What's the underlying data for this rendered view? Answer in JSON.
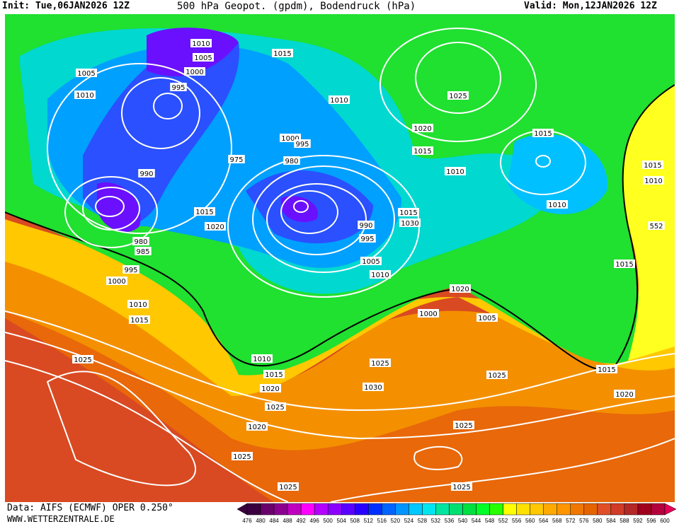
{
  "header": {
    "init": "Init: Tue,06JAN2026 12Z",
    "title": "500 hPa Geopot. (gpdm), Bodendruck (hPa)",
    "valid": "Valid: Mon,12JAN2026 12Z"
  },
  "footer": {
    "data_source": "Data: AIFS (ECMWF) OPER 0.250°",
    "website": "WWW.WETTERZENTRALE.DE"
  },
  "colorbar": {
    "labels": [
      "476",
      "480",
      "484",
      "488",
      "492",
      "496",
      "500",
      "504",
      "508",
      "512",
      "516",
      "520",
      "524",
      "528",
      "532",
      "536",
      "540",
      "544",
      "548",
      "552",
      "556",
      "560",
      "564",
      "568",
      "572",
      "576",
      "580",
      "584",
      "588",
      "592",
      "596",
      "600"
    ],
    "colors": [
      "#3a0040",
      "#6a006a",
      "#8c0090",
      "#c000c0",
      "#ff00ff",
      "#b400ff",
      "#8c00ff",
      "#5a00ff",
      "#2800ff",
      "#0030ff",
      "#0064ff",
      "#0096ff",
      "#00c8ff",
      "#00e6f0",
      "#00e6a0",
      "#00e070",
      "#00e040",
      "#00ff28",
      "#28ff00",
      "#ffff00",
      "#ffe100",
      "#ffc800",
      "#ffaa00",
      "#ff9600",
      "#f07800",
      "#e66400",
      "#e05028",
      "#d03c28",
      "#b42828",
      "#a0001e",
      "#b4003c"
    ],
    "arrow_low": "#3a0040",
    "arrow_high": "#e6005a"
  },
  "map": {
    "pressure_labels": [
      "1010",
      "1005",
      "1000",
      "995",
      "1005",
      "1010",
      "990",
      "980",
      "985",
      "995",
      "1000",
      "1010",
      "1015",
      "1025",
      "1015",
      "1020",
      "1015",
      "1010",
      "1000",
      "995",
      "975",
      "980",
      "990",
      "995",
      "1005",
      "1010",
      "1015",
      "1030",
      "1025",
      "1020",
      "1015",
      "1010",
      "1015",
      "1010",
      "1015",
      "1010",
      "552",
      "1015",
      "1020",
      "1000",
      "1005",
      "1010",
      "1015",
      "1020",
      "1025",
      "1020",
      "1025",
      "1030",
      "1025",
      "1025",
      "1015",
      "1020",
      "1025",
      "1025",
      "1025"
    ],
    "contour_label_552": "552"
  }
}
